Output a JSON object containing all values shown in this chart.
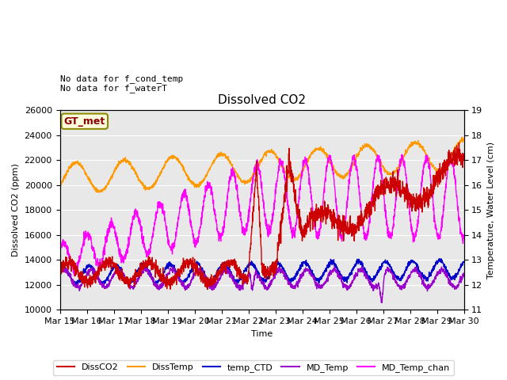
{
  "title": "Dissolved CO2",
  "xlabel": "Time",
  "ylabel_left": "Dissolved CO2 (ppm)",
  "ylabel_right": "Temperature, Water Level (cm)",
  "ylim_left": [
    10000,
    26000
  ],
  "ylim_right": [
    11.0,
    19.0
  ],
  "yticks_left": [
    10000,
    12000,
    14000,
    16000,
    18000,
    20000,
    22000,
    24000,
    26000
  ],
  "yticks_right": [
    11.0,
    12.0,
    13.0,
    14.0,
    15.0,
    16.0,
    17.0,
    18.0,
    19.0
  ],
  "xticklabels": [
    "Mar 15",
    "Mar 16",
    "Mar 17",
    "Mar 18",
    "Mar 19",
    "Mar 20",
    "Mar 21",
    "Mar 22",
    "Mar 23",
    "Mar 24",
    "Mar 25",
    "Mar 26",
    "Mar 27",
    "Mar 28",
    "Mar 29",
    "Mar 30"
  ],
  "colors": {
    "DissCO2": "#cc0000",
    "DissTemp": "#ff9900",
    "temp_CTD": "#0000cc",
    "MD_Temp": "#9900cc",
    "MD_Temp_chan": "#ff00ff"
  },
  "annotation_text": "No data for f_cond_temp\nNo data for f_waterT",
  "gt_met_label": "GT_met",
  "background_color": "#e8e8e8",
  "grid_color": "white",
  "figsize": [
    6.4,
    4.8
  ],
  "dpi": 100
}
